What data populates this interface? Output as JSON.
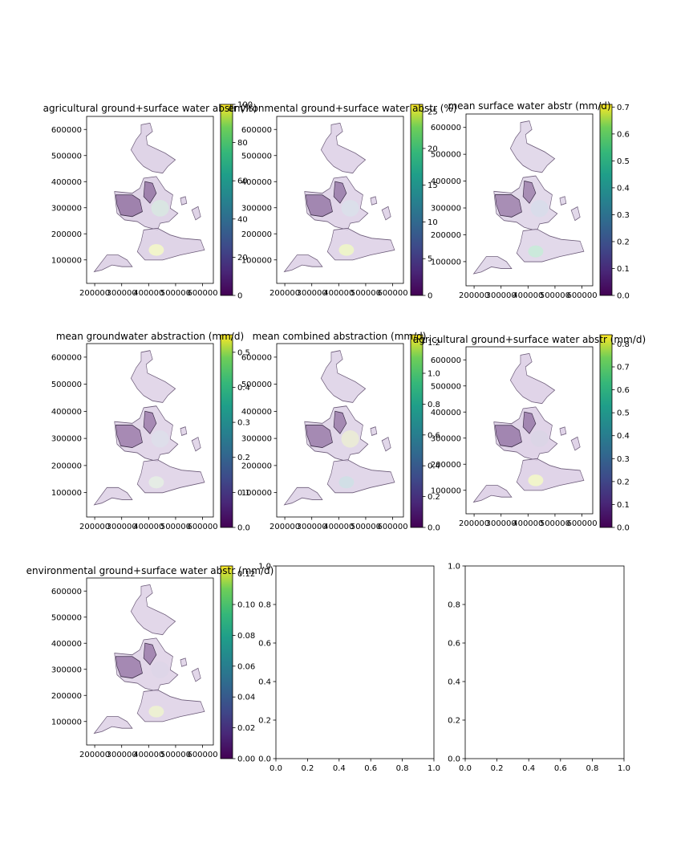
{
  "figure": {
    "panels": [
      {
        "id": "p1",
        "kind": "map",
        "title": "agricultural ground+surface water abstr (%)",
        "xticks": [
          "200000",
          "300000",
          "400000",
          "500000",
          "600000"
        ],
        "yticks": [
          "100000",
          "200000",
          "300000",
          "400000",
          "500000",
          "600000"
        ],
        "colorbar": {
          "min": 0,
          "max": 100,
          "ticks": [
            "0",
            "20",
            "40",
            "60",
            "80",
            "100"
          ]
        }
      },
      {
        "id": "p2",
        "kind": "map",
        "title": "environmental ground+surface water abstr (%)",
        "xticks": [
          "200000",
          "300000",
          "400000",
          "500000",
          "600000"
        ],
        "yticks": [
          "100000",
          "200000",
          "300000",
          "400000",
          "500000",
          "600000"
        ],
        "colorbar": {
          "min": 0,
          "max": 26,
          "ticks": [
            "0",
            "5",
            "10",
            "15",
            "20",
            "25"
          ]
        }
      },
      {
        "id": "p3",
        "kind": "map",
        "title": "mean surface water abstr (mm/d)",
        "xticks": [
          "200000",
          "300000",
          "400000",
          "500000",
          "600000"
        ],
        "yticks": [
          "100000",
          "200000",
          "300000",
          "400000",
          "500000",
          "600000"
        ],
        "colorbar": {
          "min": 0,
          "max": 0.71,
          "ticks": [
            "0.0",
            "0.1",
            "0.2",
            "0.3",
            "0.4",
            "0.5",
            "0.6",
            "0.7"
          ]
        }
      },
      {
        "id": "p4",
        "kind": "map",
        "title": "mean groundwater abstraction (mm/d)",
        "xticks": [
          "200000",
          "300000",
          "400000",
          "500000",
          "600000"
        ],
        "yticks": [
          "100000",
          "200000",
          "300000",
          "400000",
          "500000",
          "600000"
        ],
        "colorbar": {
          "min": 0,
          "max": 0.55,
          "ticks": [
            "0.0",
            "0.1",
            "0.2",
            "0.3",
            "0.4",
            "0.5"
          ]
        }
      },
      {
        "id": "p5",
        "kind": "map",
        "title": "mean combined abstraction (mm/d)",
        "xticks": [
          "200000",
          "300000",
          "400000",
          "500000",
          "600000"
        ],
        "yticks": [
          "100000",
          "200000",
          "300000",
          "400000",
          "500000",
          "600000"
        ],
        "colorbar": {
          "min": 0,
          "max": 1.25,
          "ticks": [
            "0.0",
            "0.2",
            "0.4",
            "0.6",
            "0.8",
            "1.0",
            "1.2"
          ]
        }
      },
      {
        "id": "p6",
        "kind": "map",
        "title": "agricultural ground+surface water abstr (mm/d)",
        "xticks": [
          "200000",
          "300000",
          "400000",
          "500000",
          "600000"
        ],
        "yticks": [
          "100000",
          "200000",
          "300000",
          "400000",
          "500000",
          "600000"
        ],
        "colorbar": {
          "min": 0,
          "max": 0.84,
          "ticks": [
            "0.0",
            "0.1",
            "0.2",
            "0.3",
            "0.4",
            "0.5",
            "0.6",
            "0.7",
            "0.8"
          ]
        }
      },
      {
        "id": "p7",
        "kind": "map",
        "title": "environmental ground+surface water abstr (mm/d)",
        "xticks": [
          "200000",
          "300000",
          "400000",
          "500000",
          "600000"
        ],
        "yticks": [
          "100000",
          "200000",
          "300000",
          "400000",
          "500000",
          "600000"
        ],
        "colorbar": {
          "min": 0,
          "max": 0.125,
          "ticks": [
            "0.00",
            "0.02",
            "0.04",
            "0.06",
            "0.08",
            "0.10",
            "0.12"
          ]
        }
      },
      {
        "id": "p8",
        "kind": "empty",
        "title": "",
        "xticks": [
          "0.0",
          "0.2",
          "0.4",
          "0.6",
          "0.8",
          "1.0"
        ],
        "yticks": [
          "0.0",
          "0.2",
          "0.4",
          "0.6",
          "0.8",
          "1.0"
        ]
      },
      {
        "id": "p9",
        "kind": "empty",
        "title": "",
        "xticks": [
          "0.0",
          "0.2",
          "0.4",
          "0.6",
          "0.8",
          "1.0"
        ],
        "yticks": [
          "0.0",
          "0.2",
          "0.4",
          "0.6",
          "0.8",
          "1.0"
        ]
      }
    ]
  },
  "chart_data": [
    {
      "type": "heatmap",
      "title": "agricultural ground+surface water abstr (%)",
      "xlim": [
        170000,
        640000
      ],
      "ylim": [
        10000,
        650000
      ],
      "colorbar": {
        "min": 0,
        "max": 100,
        "colormap": "viridis"
      },
      "grid": false
    },
    {
      "type": "heatmap",
      "title": "environmental ground+surface water abstr (%)",
      "xlim": [
        170000,
        640000
      ],
      "ylim": [
        10000,
        650000
      ],
      "colorbar": {
        "min": 0,
        "max": 26,
        "colormap": "viridis"
      },
      "grid": false
    },
    {
      "type": "heatmap",
      "title": "mean surface water abstr (mm/d)",
      "xlim": [
        170000,
        640000
      ],
      "ylim": [
        10000,
        650000
      ],
      "colorbar": {
        "min": 0,
        "max": 0.71,
        "colormap": "viridis"
      },
      "grid": false
    },
    {
      "type": "heatmap",
      "title": "mean groundwater abstraction (mm/d)",
      "xlim": [
        170000,
        640000
      ],
      "ylim": [
        10000,
        650000
      ],
      "colorbar": {
        "min": 0,
        "max": 0.55,
        "colormap": "viridis"
      },
      "grid": false
    },
    {
      "type": "heatmap",
      "title": "mean combined abstraction (mm/d)",
      "xlim": [
        170000,
        640000
      ],
      "ylim": [
        10000,
        650000
      ],
      "colorbar": {
        "min": 0,
        "max": 1.25,
        "colormap": "viridis"
      },
      "grid": false
    },
    {
      "type": "heatmap",
      "title": "agricultural ground+surface water abstr (mm/d)",
      "xlim": [
        170000,
        640000
      ],
      "ylim": [
        10000,
        650000
      ],
      "colorbar": {
        "min": 0,
        "max": 0.84,
        "colormap": "viridis"
      },
      "grid": false
    },
    {
      "type": "heatmap",
      "title": "environmental ground+surface water abstr (mm/d)",
      "xlim": [
        170000,
        640000
      ],
      "ylim": [
        10000,
        650000
      ],
      "colorbar": {
        "min": 0,
        "max": 0.125,
        "colormap": "viridis"
      },
      "grid": false
    },
    {
      "type": "scatter",
      "xlim": [
        0,
        1
      ],
      "ylim": [
        0,
        1
      ],
      "series": [],
      "grid": false
    },
    {
      "type": "scatter",
      "xlim": [
        0,
        1
      ],
      "ylim": [
        0,
        1
      ],
      "series": [],
      "grid": false
    }
  ]
}
